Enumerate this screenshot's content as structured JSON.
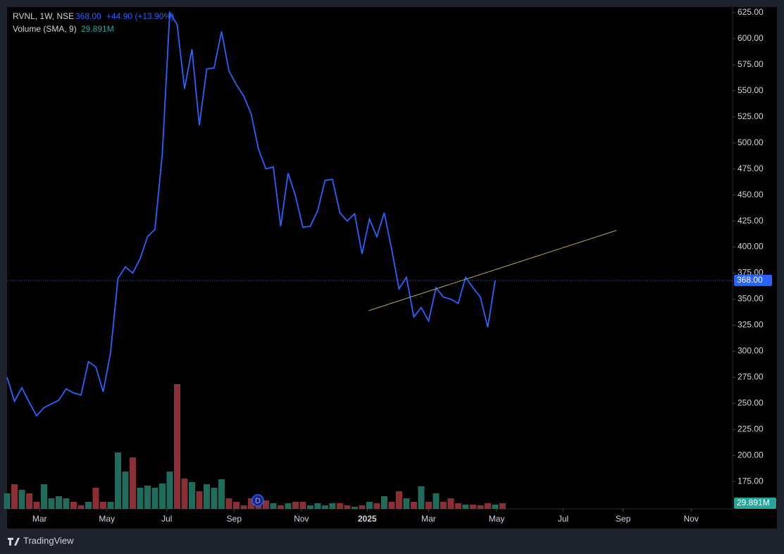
{
  "chart_data": {
    "type": "line",
    "title": "RVNL, 1W, NSE",
    "last_price": "368.00",
    "change": "+44.90 (+13.90%)",
    "volume_title": "Volume (SMA, 9)",
    "volume_sma": "29.891M",
    "brand": "TradingView",
    "color": "#2962ff",
    "up_color": "#1f6b5c",
    "down_color": "#8c2f34",
    "series": [
      {
        "name": "RVNL",
        "color": "#2962ff",
        "values": [
          275,
          252,
          265,
          251,
          238,
          246,
          249.5,
          253,
          264,
          260,
          258,
          290,
          285,
          261,
          299,
          370,
          381,
          375,
          389,
          410,
          417,
          490,
          625,
          613.5,
          552,
          590,
          517,
          571,
          572,
          607,
          569,
          556,
          545,
          528,
          494,
          475,
          477,
          420,
          471,
          449,
          419,
          420,
          435,
          464,
          465,
          433,
          425,
          432,
          393.5,
          427,
          410,
          433,
          398,
          360,
          371,
          333,
          342,
          329,
          361,
          352,
          350,
          346,
          371,
          361,
          352,
          323,
          368
        ]
      },
      {
        "name": "Volume",
        "color": "#1f6b5c",
        "values": [
          22,
          35,
          27,
          22,
          10,
          35,
          15,
          18,
          15,
          10,
          5,
          10,
          30,
          10,
          10,
          80,
          53,
          73,
          30,
          33,
          30,
          36,
          53,
          177,
          43,
          38,
          25,
          35,
          30,
          42,
          15,
          10,
          5,
          15,
          8,
          12,
          8,
          5,
          8,
          10,
          10,
          5,
          8,
          5,
          8,
          8,
          5,
          3,
          5,
          10,
          8,
          18,
          10,
          25,
          15,
          10,
          32,
          10,
          22,
          10,
          15,
          8,
          6,
          6,
          5,
          8,
          6,
          8
        ]
      }
    ],
    "xlim": [
      0,
      98.1
    ],
    "xticks": [
      {
        "value": 4.4,
        "label": "Mar"
      },
      {
        "value": 13.5,
        "label": "May"
      },
      {
        "value": 21.6,
        "label": "Jul"
      },
      {
        "value": 30.7,
        "label": "Sep"
      },
      {
        "value": 39.8,
        "label": "Nov"
      },
      {
        "value": 48.7,
        "label": "2025"
      },
      {
        "value": 57,
        "label": "Mar"
      },
      {
        "value": 66.2,
        "label": "May"
      },
      {
        "value": 75.2,
        "label": "Jul"
      },
      {
        "value": 83.3,
        "label": "Sep"
      },
      {
        "value": 92.5,
        "label": "Nov"
      }
    ],
    "ylim": [
      148.7,
      630.4
    ],
    "yticks": [
      {
        "value": 175,
        "label": "175.00"
      },
      {
        "value": 200,
        "label": "200.00"
      },
      {
        "value": 225,
        "label": "225.00"
      },
      {
        "value": 250,
        "label": "250.00"
      },
      {
        "value": 275,
        "label": "275.00"
      },
      {
        "value": 300,
        "label": "300.00"
      },
      {
        "value": 325,
        "label": "325.00"
      },
      {
        "value": 350,
        "label": "350.00"
      },
      {
        "value": 375,
        "label": "375.00"
      },
      {
        "value": 400,
        "label": "400.00"
      },
      {
        "value": 425,
        "label": "425.00"
      },
      {
        "value": 450,
        "label": "450.00"
      },
      {
        "value": 475,
        "label": "475.00"
      },
      {
        "value": 500,
        "label": "500.00"
      },
      {
        "value": 525,
        "label": "525.00"
      },
      {
        "value": 550,
        "label": "550.00"
      },
      {
        "value": 575,
        "label": "575.00"
      },
      {
        "value": 600,
        "label": "600.00"
      },
      {
        "value": 625,
        "label": "625.00"
      }
    ],
    "price_line": {
      "value": 368,
      "label": "368.00"
    },
    "trendline": {
      "x": [
        48.9,
        82.4
      ],
      "y": [
        339,
        416
      ],
      "color": "#b5a55a"
    },
    "markers": [
      {
        "label": "D",
        "x": 33.9
      }
    ]
  }
}
